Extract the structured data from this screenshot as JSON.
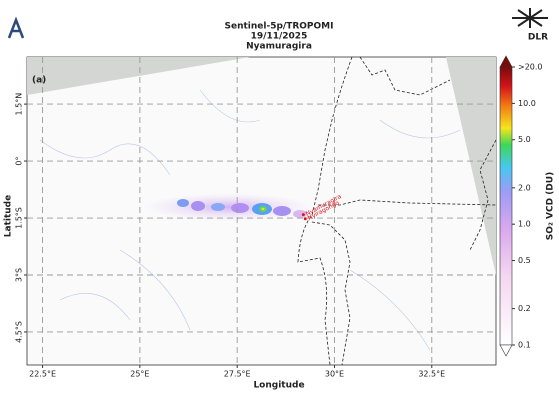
{
  "title": [
    "Sentinel-5p/TROPOMI",
    "19/11/2025",
    "Nyamuragira"
  ],
  "panel_label": "(a)",
  "logo": "DLR",
  "map": {
    "xlabel": "Longitude",
    "ylabel": "Latitude",
    "xlim": [
      22.1,
      34.15
    ],
    "ylim": [
      -5.37,
      2.74
    ],
    "xticks": [
      {
        "value": 22.5,
        "label": "22.5°E"
      },
      {
        "value": 25,
        "label": "25°E"
      },
      {
        "value": 27.5,
        "label": "27.5°E"
      },
      {
        "value": 30,
        "label": "30°E"
      },
      {
        "value": 32.5,
        "label": "32.5°E"
      }
    ],
    "yticks": [
      {
        "value": 1.5,
        "label": "1.5°N"
      },
      {
        "value": 0,
        "label": "0°"
      },
      {
        "value": -1.5,
        "label": "1.5°S"
      },
      {
        "value": -3,
        "label": "3°S"
      },
      {
        "value": -4.5,
        "label": "4.5°S"
      }
    ],
    "grid": true,
    "volcanoes": [
      {
        "name": "Nyamuragira",
        "lat": -1.41,
        "lon": 29.2
      },
      {
        "name": "Nyiragongo",
        "lat": -1.52,
        "lon": 29.25
      }
    ]
  },
  "colorbar": {
    "label": "SO₂ VCD (DU)",
    "log": true,
    "clim": [
      0.1,
      20
    ],
    "ticks": [
      0.1,
      0.2,
      0.5,
      {
        "value": 1,
        "label": "1.0"
      },
      {
        "value": 2,
        "label": "2.0"
      },
      {
        "value": 5,
        "label": "5.0"
      },
      {
        "value": 10,
        "label": "10.0"
      },
      {
        "value": 20,
        "label": ">20.0"
      }
    ]
  }
}
